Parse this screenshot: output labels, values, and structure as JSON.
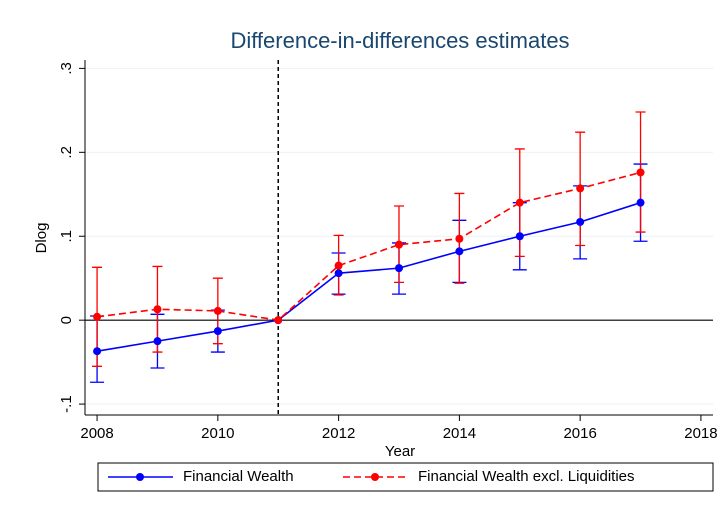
{
  "chart_data": {
    "type": "line",
    "title": "Difference-in-differences estimates",
    "x_label": "Year",
    "y_label": "Dlog",
    "x": [
      2008,
      2009,
      2010,
      2011,
      2012,
      2013,
      2014,
      2015,
      2016,
      2017
    ],
    "series": [
      {
        "name": "Financial Wealth",
        "color": "#0000ff",
        "line_style": "solid",
        "values": [
          -0.037,
          -0.025,
          -0.013,
          0,
          0.056,
          0.062,
          0.082,
          0.1,
          0.117,
          0.14
        ],
        "ci_low": [
          -0.074,
          -0.057,
          -0.038,
          null,
          0.031,
          0.031,
          0.045,
          0.06,
          0.073,
          0.094
        ],
        "ci_high": [
          0.005,
          0.007,
          0.012,
          null,
          0.08,
          0.092,
          0.119,
          0.14,
          0.16,
          0.186
        ]
      },
      {
        "name": "Financial Wealth excl. Liquidities",
        "color": "#ff0000",
        "line_style": "dashed",
        "values": [
          0.004,
          0.013,
          0.011,
          0,
          0.065,
          0.09,
          0.097,
          0.14,
          0.157,
          0.176
        ],
        "ci_low": [
          -0.055,
          -0.038,
          -0.028,
          null,
          0.03,
          0.045,
          0.044,
          0.076,
          0.089,
          0.105
        ],
        "ci_high": [
          0.063,
          0.064,
          0.05,
          null,
          0.101,
          0.136,
          0.151,
          0.204,
          0.224,
          0.248
        ]
      }
    ],
    "xlim": [
      2007.8,
      2018.2
    ],
    "xticks": [
      2008,
      2010,
      2012,
      2014,
      2016,
      2018
    ],
    "ylim": [
      -0.113,
      0.31
    ],
    "yticks": [
      {
        "value": -0.1,
        "label": "-.1"
      },
      0,
      {
        "value": 0.1,
        "label": ".1"
      },
      {
        "value": 0.2,
        "label": ".2"
      },
      {
        "value": 0.3,
        "label": ".3"
      }
    ],
    "vline": 2011,
    "grid": true,
    "legend": "bottom"
  }
}
